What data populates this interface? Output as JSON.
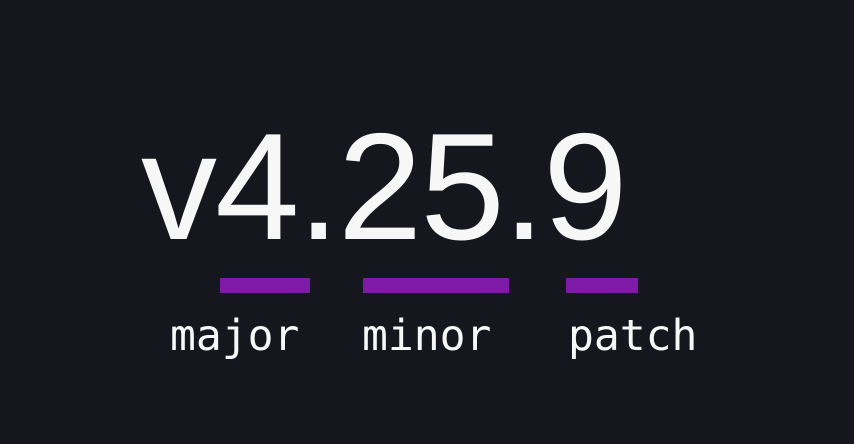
{
  "colors": {
    "background": "#16161f",
    "accent": "#7d1ba6",
    "text": "#f7f7f7"
  },
  "version": {
    "full": "v4.25.9",
    "prefix": "v",
    "major": "4",
    "separator1": ".",
    "minor": "25",
    "separator2": ".",
    "patch": "9"
  },
  "labels": {
    "major": "major",
    "minor": "minor",
    "patch": "patch"
  }
}
